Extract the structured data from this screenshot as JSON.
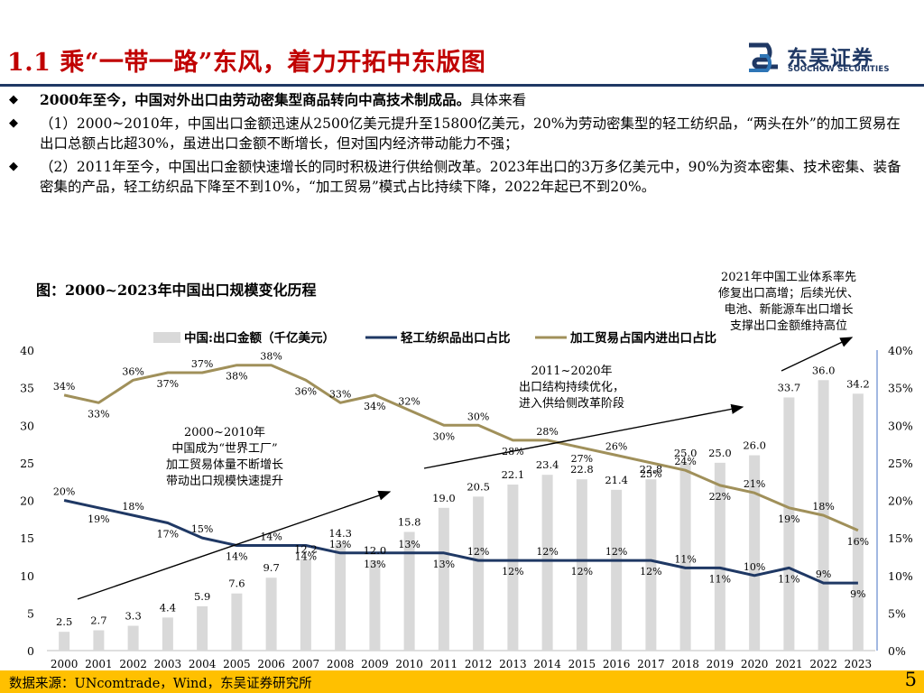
{
  "header": {
    "title": "1.1 乘“一带一路”东风，着力开拓中东版图",
    "logo_cn": "东吴证券",
    "logo_en": "SOOCHOW SECURITIES",
    "logo_icon": "soochow-logo-icon",
    "brand_color": "#1f3864",
    "title_color": "#c00000"
  },
  "bullets": [
    {
      "mark": "◆",
      "bold": "2000年至今，中国对外出口由劳动密集型商品转向中高技术制成品。",
      "text": "具体来看"
    },
    {
      "mark": "◆",
      "bold": "",
      "text": "（1）2000~2010年，中国出口金额迅速从2500亿美元提升至15800亿美元，20%为劳动密集型的轻工纺织品，“两头在外”的加工贸易在出口总额占比超30%，虽进出口金额不断增长，但对国内经济带动能力不强；"
    },
    {
      "mark": "◆",
      "bold": "",
      "text": "（2）2011年至今，中国出口金额快速增长的同时积极进行供给侧改革。2023年出口的3万多亿美元中，90%为资本密集、技术密集、装备密集的产品，轻工纺织品下降至不到10%，“加工贸易”模式占比持续下降，2022年起已不到20%。"
    }
  ],
  "chart_title": "图：2000~2023年中国出口规模变化历程",
  "annotations": {
    "a2000": [
      "2000~2010年",
      "中国成为“世界工厂”",
      "加工贸易体量不断增长",
      "带动出口规模快速提升"
    ],
    "a2011": [
      "2011~2020年",
      "出口结构持续优化，",
      "进入供给侧改革阶段"
    ],
    "a2021": [
      "2021年中国工业体系率先",
      "修复出口高增；后续光伏、",
      "电池、新能源车出口增长",
      "支撑出口金额维持高位"
    ]
  },
  "chart_data": {
    "type": "bar+line",
    "categories": [
      "2000",
      "2001",
      "2002",
      "2003",
      "2004",
      "2005",
      "2006",
      "2007",
      "2008",
      "2009",
      "2010",
      "2011",
      "2012",
      "2013",
      "2014",
      "2015",
      "2016",
      "2017",
      "2018",
      "2019",
      "2020",
      "2021",
      "2022",
      "2023"
    ],
    "bars": {
      "name": "中国:出口金额（千亿美元）",
      "values": [
        2.5,
        2.7,
        3.3,
        4.4,
        5.9,
        7.6,
        9.7,
        12.2,
        14.3,
        12.0,
        15.8,
        19.0,
        20.5,
        22.1,
        23.4,
        22.8,
        21.4,
        22.8,
        25.0,
        25.0,
        26.0,
        33.7,
        36.0,
        34.2
      ],
      "labels": [
        "2.5",
        "2.7",
        "3.3",
        "4.4",
        "5.9",
        "7.6",
        "9.7",
        "12.2",
        "14.3",
        "12.0",
        "15.8",
        "19.0",
        "20.5",
        "22.1",
        "23.4",
        "22.8",
        "21.4",
        "22.8",
        "25.0",
        "25.0",
        "26.0",
        "33.7",
        "36.0",
        "34.2"
      ],
      "color": "#d9d9d9"
    },
    "series": [
      {
        "name": "轻工纺织品出口占比",
        "values": [
          20,
          19,
          18,
          17,
          15,
          14,
          14,
          14,
          13,
          13,
          13,
          13,
          12,
          12,
          12,
          12,
          12,
          12,
          11,
          11,
          10,
          11,
          9,
          9
        ],
        "labels": [
          "20%",
          "19%",
          "18%",
          "17%",
          "15%",
          "14%",
          "14%",
          "14%",
          "13%",
          "13%",
          "13%",
          "13%",
          "12%",
          "12%",
          "12%",
          "12%",
          "12%",
          "12%",
          "11%",
          "11%",
          "10%",
          "11%",
          "9%",
          "9%"
        ],
        "color": "#1f3864"
      },
      {
        "name": "加工贸易占国内进出口占比",
        "values": [
          34,
          33,
          36,
          37,
          37,
          38,
          38,
          36,
          33,
          34,
          32,
          30,
          30,
          28,
          28,
          27,
          26,
          25,
          24,
          22,
          21,
          19,
          18,
          16
        ],
        "labels": [
          "34%",
          "33%",
          "36%",
          "37%",
          "37%",
          "38%",
          "38%",
          "36%",
          "33%",
          "34%",
          "32%",
          "30%",
          "30%",
          "28%",
          "28%",
          "27%",
          "26%",
          "25%",
          "24%",
          "22%",
          "21%",
          "19%",
          "18%",
          "16%"
        ],
        "color": "#a0905a"
      }
    ],
    "y_left": {
      "min": 0,
      "max": 40,
      "ticks": [
        "0",
        "5",
        "10",
        "15",
        "20",
        "25",
        "30",
        "35",
        "40"
      ]
    },
    "y_right": {
      "min": 0,
      "max": 40,
      "ticks": [
        "0%",
        "5%",
        "10%",
        "15%",
        "20%",
        "25%",
        "30%",
        "35%",
        "40%"
      ]
    },
    "legend_position": "top"
  },
  "footer": {
    "source": "数据来源：UNcomtrade，Wind，东吴证券研究所",
    "page_number": "5",
    "bar_color": "#ffc000"
  }
}
